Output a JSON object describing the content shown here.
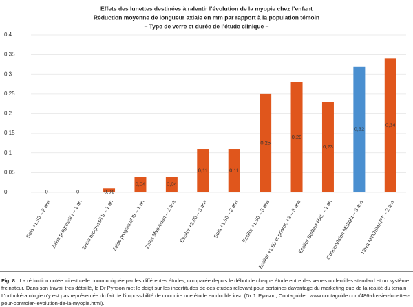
{
  "chart_data": {
    "type": "bar",
    "title": [
      "Effets des lunettes destinées à ralentir l’évolution de la myopie chez l’enfant",
      "Réduction moyenne de longueur axiale en mm par rapport à la population témoin",
      "– Type de verre et durée de l’étude clinique –"
    ],
    "categories": [
      "Sola +1,50 – 2 ans",
      "Zeiss progressif I – 1 an",
      "Zeiss progressif II – 1 an",
      "Zeiss progressif III – 1 an",
      "Zeiss Myovision – 2 ans",
      "Essilor +2,00 – 3 ans",
      "Sola +1,50 – 2 ans",
      "Essilor +1,50 – 3 ans",
      "Essilor +1,50 et prisme +3 – 3 ans",
      "Essilor Stellest HAL – 1 an",
      "CooperVision MiSight – 3 ans",
      "Hoya MYOSMART – 2 ans"
    ],
    "values": [
      0,
      0,
      0.01,
      0.04,
      0.04,
      0.11,
      0.11,
      0.25,
      0.28,
      0.23,
      0.32,
      0.34
    ],
    "value_labels": [
      "0",
      "0",
      "0,01",
      "0,04",
      "0,04",
      "0,11",
      "0,11",
      "0,25",
      "0,28",
      "0,23",
      "0,32",
      "0,34"
    ],
    "colors": [
      "#e0561c",
      "#e0561c",
      "#e0561c",
      "#e0561c",
      "#e0561c",
      "#e0561c",
      "#e0561c",
      "#e0561c",
      "#e0561c",
      "#e0561c",
      "#4a8fd0",
      "#e0561c"
    ],
    "ylim": [
      0,
      0.4
    ],
    "yticks": [
      0,
      {
        "value": 0.05,
        "label": "0,05"
      },
      {
        "value": 0.1,
        "label": "0,1"
      },
      {
        "value": 0.15,
        "label": "0,15"
      },
      {
        "value": 0.2,
        "label": "0,2"
      },
      {
        "value": 0.25,
        "label": "0,25"
      },
      {
        "value": 0.3,
        "label": "0,3"
      },
      {
        "value": 0.35,
        "label": "0,35"
      },
      {
        "value": 0.4,
        "label": "0,4"
      }
    ],
    "grid": true
  },
  "caption": {
    "label": "Fig. 8 :",
    "text": "La réduction notée ici est celle communiquée par les différentes études, comparée depuis le début de chaque étude entre des verres ou lentilles standard et un système freinateur. Dans son travail très détaillé, le Dr Pynson met le doigt sur les incertitudes de ces études relevant pour certaines davantage du marketing que de la réalité du terrain. L’orthokératologie n’y est pas représentée du fait de l’impossibilité de conduire une étude en double insu (Dr J. Pynson, Contaguide : www.contaguide.com/486-dossier-lunettes-pour-controler-levolution-de-la-myopie.html)."
  }
}
